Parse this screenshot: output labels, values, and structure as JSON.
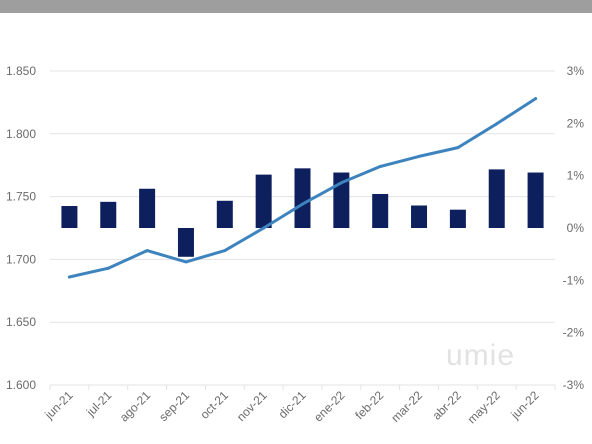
{
  "chart_data": {
    "type": "bar+line",
    "categories": [
      "jun-21",
      "jul-21",
      "ago-21",
      "sep-21",
      "oct-21",
      "nov-21",
      "dic-21",
      "ene-22",
      "feb-22",
      "mar-22",
      "abr-22",
      "may-22",
      "jun-22"
    ],
    "series": [
      {
        "type": "bar",
        "axis": "right",
        "values": [
          0.42,
          0.5,
          0.75,
          -0.55,
          0.52,
          1.02,
          1.14,
          1.06,
          0.65,
          0.43,
          0.35,
          1.12,
          1.06
        ]
      },
      {
        "type": "line",
        "axis": "left",
        "values": [
          1686,
          1693,
          1707,
          1698,
          1707,
          1725,
          1744,
          1761,
          1774,
          1782,
          1789,
          1808,
          1828
        ]
      }
    ],
    "y_left": {
      "min": 1600,
      "max": 1850,
      "ticks": [
        "1.850",
        "1.800",
        "1.750",
        "1.700",
        "1.650",
        "1.600"
      ]
    },
    "y_right": {
      "min": -3,
      "max": 3,
      "ticks": [
        "3%",
        "2%",
        "1%",
        "0%",
        "-1%",
        "-2%",
        "-3%"
      ]
    },
    "grid": true,
    "legend": "none",
    "colors": {
      "bar": "#0d1f5c",
      "line": "#3d84bf",
      "grid": "#e3e3e3",
      "topbar": "#9e9e9e"
    }
  },
  "watermark": "umie"
}
